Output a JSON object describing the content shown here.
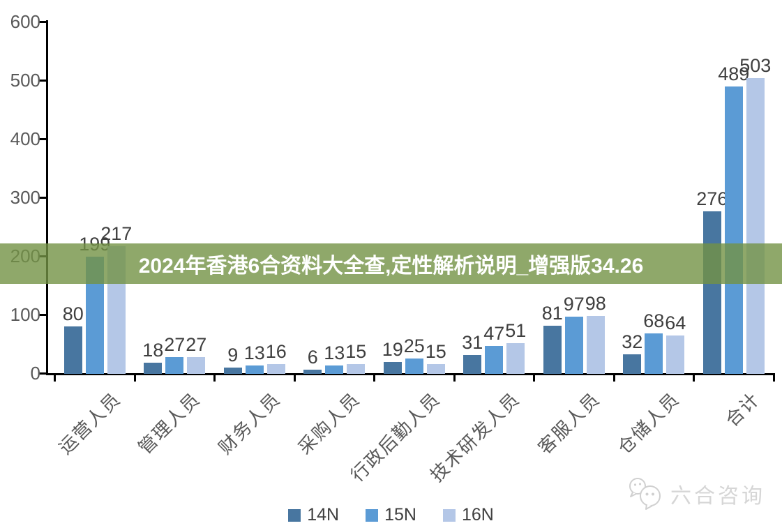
{
  "banner": {
    "text": "2024年香港6合资料大全查,定性解析说明_增强版34.26",
    "bg_color": "#739245",
    "text_color": "#ffffff"
  },
  "watermark": {
    "text": "六合咨询",
    "icon": "chat-bubbles-icon",
    "color": "#d6d6d6"
  },
  "chart_data": {
    "type": "bar",
    "title": "",
    "xlabel": "",
    "ylabel": "",
    "categories": [
      "运营人员",
      "管理人员",
      "财务人员",
      "采购人员",
      "行政后勤人员",
      "技术研发人员",
      "客服人员",
      "仓储人员",
      "合计"
    ],
    "series": [
      {
        "name": "14N",
        "color": "#4876A0",
        "values": [
          80,
          18,
          9,
          6,
          19,
          31,
          81,
          32,
          276
        ]
      },
      {
        "name": "15N",
        "color": "#5B9BD5",
        "values": [
          199,
          27,
          13,
          13,
          25,
          47,
          97,
          68,
          489
        ]
      },
      {
        "name": "16N",
        "color": "#B4C7E7",
        "values": [
          217,
          27,
          16,
          15,
          15,
          51,
          98,
          64,
          503
        ]
      }
    ],
    "ylim": [
      0,
      600
    ],
    "yticks": [
      0,
      100,
      200,
      300,
      400,
      500,
      600
    ],
    "grid": false,
    "legend_position": "bottom",
    "axis_color": "#000000",
    "tick_label_color": "#595959",
    "value_label_color": "#3f3f3f"
  }
}
